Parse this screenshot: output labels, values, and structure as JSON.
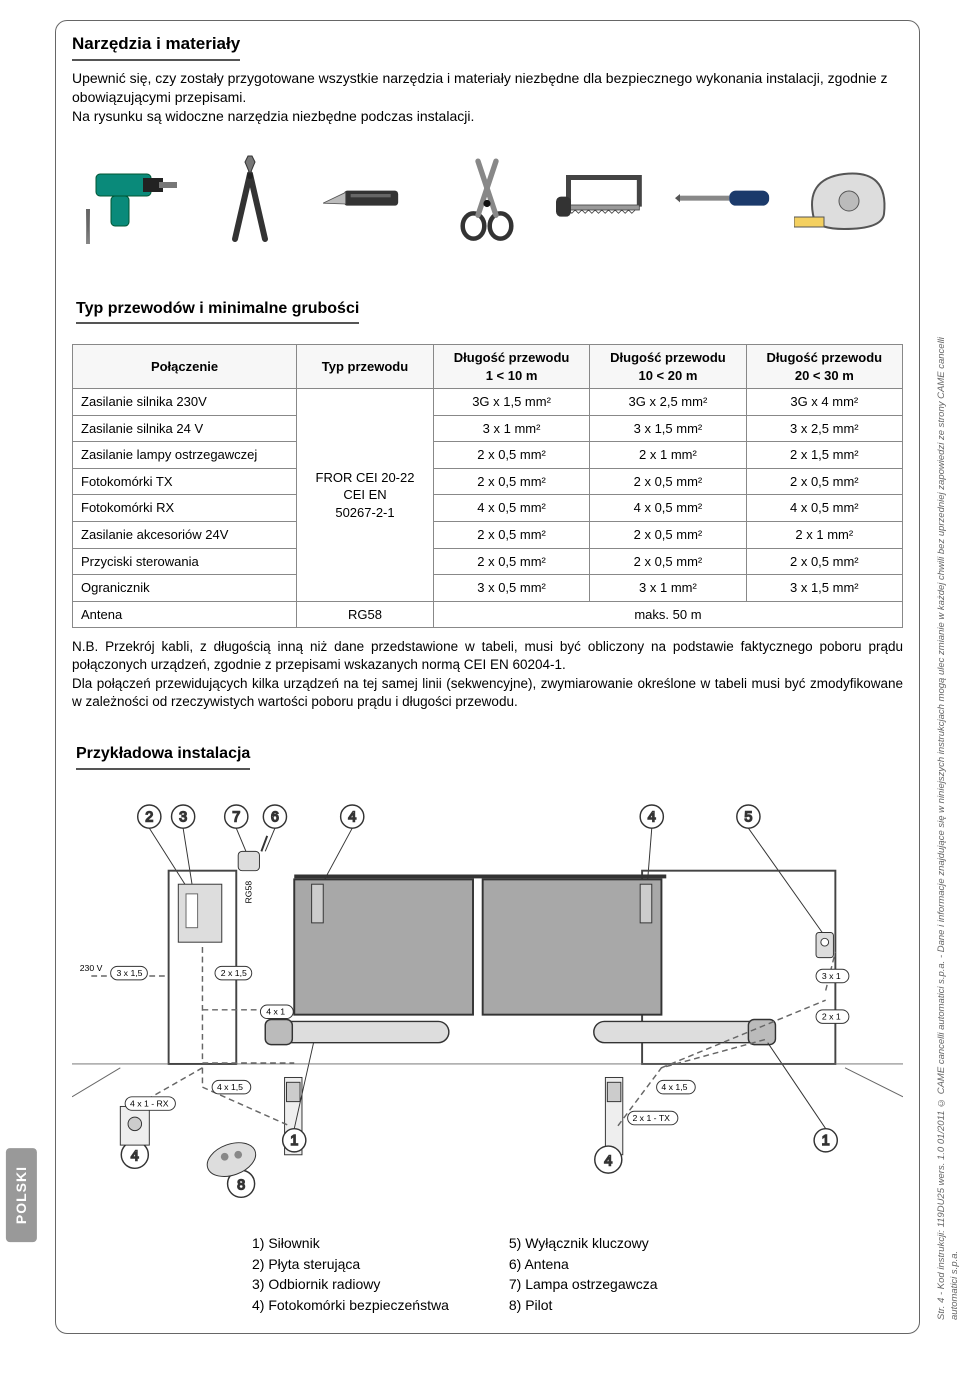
{
  "section_tools_title": "Narzędzia i materiały",
  "intro_line1": "Upewnić się, czy zostały przygotowane wszystkie narzędzia i materiały niezbędne dla bezpiecznego wykonania instalacji, zgodnie z obowiązującymi przepisami.",
  "intro_line2": "Na rysunku są widoczne narzędzia niezbędne podczas instalacji.",
  "tools": [
    "drill",
    "pliers",
    "cutter",
    "scissors",
    "hacksaw",
    "screwdriver",
    "tape"
  ],
  "cable_section_title": "Typ przewodów i minimalne grubości",
  "table": {
    "header": {
      "c0": "Połączenie",
      "c1": "Typ przewodu",
      "c2_top": "Długość przewodu",
      "c2_bot": "1 < 10 m",
      "c3_top": "Długość przewodu",
      "c3_bot": "10 < 20 m",
      "c4_top": "Długość przewodu",
      "c4_bot": "20 < 30 m"
    },
    "type_cell": "FROR CEI 20-22\nCEI EN\n50267-2-1",
    "rows": [
      {
        "c0": "Zasilanie silnika 230V",
        "c2": "3G x 1,5 mm²",
        "c3": "3G x 2,5 mm²",
        "c4": "3G x 4 mm²"
      },
      {
        "c0": "Zasilanie silnika 24 V",
        "c2": "3 x 1 mm²",
        "c3": "3 x 1,5 mm²",
        "c4": "3 x 2,5 mm²"
      },
      {
        "c0": "Zasilanie lampy ostrzegawczej",
        "c2": "2 x 0,5 mm²",
        "c3": "2 x 1 mm²",
        "c4": "2 x 1,5 mm²"
      },
      {
        "c0": "Fotokomórki TX",
        "c2": "2 x 0,5 mm²",
        "c3": "2 x 0,5 mm²",
        "c4": "2 x 0,5 mm²"
      },
      {
        "c0": "Fotokomórki RX",
        "c2": "4 x 0,5 mm²",
        "c3": "4 x 0,5 mm²",
        "c4": "4 x 0,5 mm²"
      },
      {
        "c0": "Zasilanie akcesoriów 24V",
        "c2": "2 x 0,5 mm²",
        "c3": "2 x 0,5 mm²",
        "c4": "2 x 1 mm²"
      },
      {
        "c0": "Przyciski sterowania",
        "c2": "2 x 0,5 mm²",
        "c3": "2 x 0,5 mm²",
        "c4": "2 x 0,5 mm²"
      },
      {
        "c0": "Ogranicznik",
        "c2": "3 x 0,5 mm²",
        "c3": "3 x 1 mm²",
        "c4": "3 x 1,5 mm²"
      }
    ],
    "antenna_row": {
      "c0": "Antena",
      "c1": "RG58",
      "c234": "maks. 50 m"
    }
  },
  "note1": "N.B. Przekrój kabli, z długością inną niż dane przedstawione w tabeli, musi być obliczony na podstawie faktycznego poboru prądu połączonych urządzeń, zgodnie z przepisami wskazanych normą CEI EN 60204-1.",
  "note2": "Dla połączeń przewidujących kilka urządzeń na tej samej linii (sekwencyjne), zwymiarowanie określone w tabeli musi być zmodyfikowane w zależności od rzeczywistych wartości poboru prądu i długości przewodu.",
  "example_title": "Przykładowa instalacja",
  "diagram": {
    "bubbles": {
      "n1": "1",
      "n2": "2",
      "n3": "3",
      "n4": "4",
      "n5": "5",
      "n6": "6",
      "n7": "7",
      "n8": "8"
    },
    "labels": {
      "v230": "230 V",
      "l_3x15": "3 x 1,5",
      "l_2x15": "2 x 1,5",
      "l_4x1": "4 x 1",
      "l_4x15": "4 x 1,5",
      "l_4x1rx": "4 x 1 - RX",
      "l_2x1tx": "2 x 1 - TX",
      "l_3x1": "3 x 1",
      "l_2x1": "2 x 1",
      "rg58": "RG58"
    }
  },
  "legend": {
    "left": [
      "1) Siłownik",
      "2) Płyta sterująca",
      "3) Odbiornik radiowy",
      "4) Fotokomórki bezpieczeństwa"
    ],
    "right": [
      "5) Wyłącznik kluczowy",
      "6) Antena",
      "7) Lampa ostrzegawcza",
      "8) Pilot"
    ]
  },
  "lang_tab": "POLSKI",
  "side_note": "Str. 4 - Kod instrukcji: 119DU25 wers. 1.0 01/2011 © CAME cancelli automatici s.p.a. - Dane i informacje znajdujące się w niniejszych instrukcjach mogą ulec zmianie w każdej chwili bez uprzedniej zapowiedzi ze strony CAME cancelli automatici s.p.a.",
  "colors": {
    "frame": "#666666",
    "rule": "#555555",
    "table_border": "#888888",
    "tool_teal": "#0a8a7a",
    "tool_grey": "#4a4a4a",
    "tool_handle": "#2a2a2a",
    "tool_lightgrey": "#c8c8c8",
    "tool_blue": "#1b3a6b",
    "gate_fill": "#a8a8a8",
    "gate_stroke": "#333333",
    "pillar_stroke": "#444444",
    "dash": "#666666"
  }
}
